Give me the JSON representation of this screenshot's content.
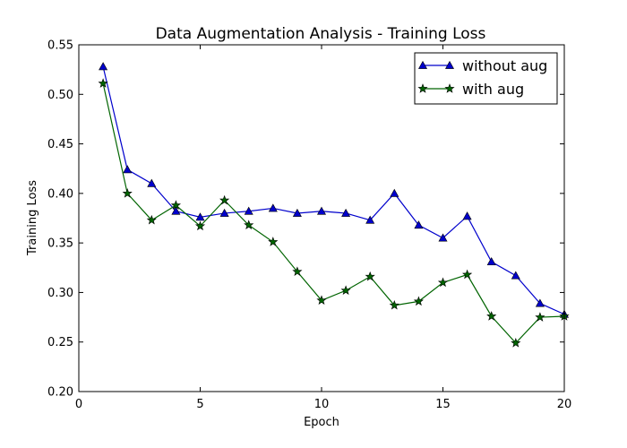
{
  "chart_data": {
    "type": "line",
    "title": "Data Augmentation Analysis - Training Loss",
    "xlabel": "Epoch",
    "ylabel": "Training Loss",
    "xlim": [
      0,
      20
    ],
    "ylim": [
      0.2,
      0.55
    ],
    "xticks": [
      "0",
      "5",
      "10",
      "15",
      "20"
    ],
    "yticks": [
      "0.20",
      "0.25",
      "0.30",
      "0.35",
      "0.40",
      "0.45",
      "0.50",
      "0.55"
    ],
    "grid": false,
    "legend_position": "top-right",
    "x": [
      1,
      2,
      3,
      4,
      5,
      6,
      7,
      8,
      9,
      10,
      11,
      12,
      13,
      14,
      15,
      16,
      17,
      18,
      19,
      20
    ],
    "series": [
      {
        "name": "without aug",
        "color": "#0000cc",
        "marker": "triangle",
        "values": [
          0.528,
          0.424,
          0.41,
          0.382,
          0.376,
          0.38,
          0.382,
          0.385,
          0.38,
          0.382,
          0.38,
          0.373,
          0.4,
          0.368,
          0.355,
          0.377,
          0.331,
          0.317,
          0.289,
          0.278
        ]
      },
      {
        "name": "with aug",
        "color": "#006400",
        "marker": "star",
        "values": [
          0.511,
          0.4,
          0.373,
          0.388,
          0.367,
          0.393,
          0.368,
          0.351,
          0.321,
          0.292,
          0.302,
          0.316,
          0.287,
          0.291,
          0.31,
          0.318,
          0.276,
          0.249,
          0.275,
          0.276
        ]
      }
    ]
  }
}
